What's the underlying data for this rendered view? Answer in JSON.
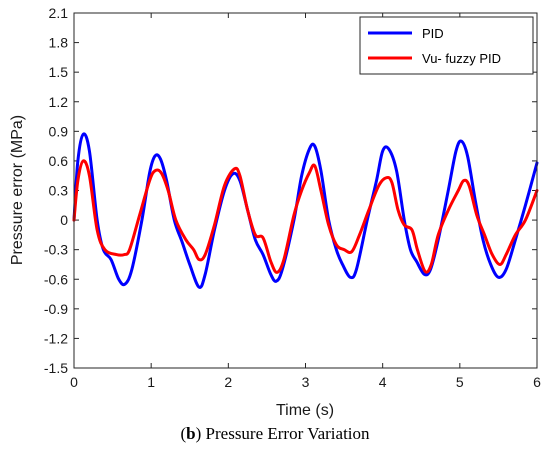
{
  "chart_data": {
    "type": "line",
    "xlabel": "Time (s)",
    "ylabel": "Pressure error (MPa)",
    "xlim": [
      0,
      6
    ],
    "ylim": [
      -1.5,
      2.1
    ],
    "xticks": [
      "0",
      "1",
      "2",
      "3",
      "4",
      "5",
      "6"
    ],
    "yticks": [
      "2.1",
      "1.8",
      "1.5",
      "1.2",
      "0.9",
      "0.6",
      "0.3",
      "0",
      "-0.3",
      "-0.6",
      "-0.9",
      "-1.2",
      "-1.5"
    ],
    "grid": false,
    "legend_position": "top-right",
    "series": [
      {
        "name": "PID",
        "color": "#0000ff",
        "points": [
          [
            0,
            0.0
          ],
          [
            0.05,
            0.6
          ],
          [
            0.12,
            0.87
          ],
          [
            0.2,
            0.7
          ],
          [
            0.3,
            0.0
          ],
          [
            0.38,
            -0.3
          ],
          [
            0.48,
            -0.4
          ],
          [
            0.58,
            -0.6
          ],
          [
            0.66,
            -0.65
          ],
          [
            0.75,
            -0.5
          ],
          [
            0.88,
            0.0
          ],
          [
            0.98,
            0.48
          ],
          [
            1.05,
            0.65
          ],
          [
            1.12,
            0.62
          ],
          [
            1.2,
            0.4
          ],
          [
            1.3,
            0.0
          ],
          [
            1.4,
            -0.22
          ],
          [
            1.5,
            -0.45
          ],
          [
            1.62,
            -0.68
          ],
          [
            1.7,
            -0.55
          ],
          [
            1.82,
            -0.1
          ],
          [
            1.95,
            0.3
          ],
          [
            2.06,
            0.47
          ],
          [
            2.15,
            0.4
          ],
          [
            2.25,
            0.1
          ],
          [
            2.35,
            -0.2
          ],
          [
            2.45,
            -0.35
          ],
          [
            2.55,
            -0.55
          ],
          [
            2.62,
            -0.62
          ],
          [
            2.7,
            -0.5
          ],
          [
            2.85,
            0.0
          ],
          [
            2.95,
            0.45
          ],
          [
            3.05,
            0.72
          ],
          [
            3.12,
            0.75
          ],
          [
            3.2,
            0.5
          ],
          [
            3.3,
            0.0
          ],
          [
            3.4,
            -0.3
          ],
          [
            3.48,
            -0.45
          ],
          [
            3.58,
            -0.58
          ],
          [
            3.66,
            -0.5
          ],
          [
            3.8,
            0.0
          ],
          [
            3.92,
            0.4
          ],
          [
            4.0,
            0.7
          ],
          [
            4.08,
            0.72
          ],
          [
            4.18,
            0.5
          ],
          [
            4.28,
            0.0
          ],
          [
            4.36,
            -0.3
          ],
          [
            4.44,
            -0.42
          ],
          [
            4.54,
            -0.55
          ],
          [
            4.62,
            -0.5
          ],
          [
            4.72,
            -0.2
          ],
          [
            4.85,
            0.3
          ],
          [
            4.95,
            0.7
          ],
          [
            5.02,
            0.8
          ],
          [
            5.1,
            0.65
          ],
          [
            5.2,
            0.2
          ],
          [
            5.3,
            -0.2
          ],
          [
            5.4,
            -0.45
          ],
          [
            5.5,
            -0.58
          ],
          [
            5.6,
            -0.5
          ],
          [
            5.72,
            -0.2
          ],
          [
            5.85,
            0.15
          ],
          [
            6.0,
            0.58
          ]
        ]
      },
      {
        "name": "Vu- fuzzy PID",
        "color": "#ff0000",
        "points": [
          [
            0,
            0.0
          ],
          [
            0.05,
            0.4
          ],
          [
            0.12,
            0.6
          ],
          [
            0.2,
            0.45
          ],
          [
            0.3,
            -0.1
          ],
          [
            0.4,
            -0.3
          ],
          [
            0.55,
            -0.35
          ],
          [
            0.65,
            -0.35
          ],
          [
            0.72,
            -0.3
          ],
          [
            0.85,
            0.05
          ],
          [
            0.98,
            0.4
          ],
          [
            1.05,
            0.5
          ],
          [
            1.13,
            0.48
          ],
          [
            1.22,
            0.3
          ],
          [
            1.32,
            0.0
          ],
          [
            1.45,
            -0.2
          ],
          [
            1.55,
            -0.3
          ],
          [
            1.62,
            -0.4
          ],
          [
            1.7,
            -0.35
          ],
          [
            1.82,
            -0.05
          ],
          [
            1.95,
            0.35
          ],
          [
            2.08,
            0.52
          ],
          [
            2.15,
            0.45
          ],
          [
            2.25,
            0.1
          ],
          [
            2.35,
            -0.15
          ],
          [
            2.45,
            -0.18
          ],
          [
            2.55,
            -0.42
          ],
          [
            2.63,
            -0.53
          ],
          [
            2.72,
            -0.4
          ],
          [
            2.85,
            0.05
          ],
          [
            2.95,
            0.3
          ],
          [
            3.05,
            0.48
          ],
          [
            3.12,
            0.55
          ],
          [
            3.2,
            0.3
          ],
          [
            3.3,
            -0.05
          ],
          [
            3.4,
            -0.25
          ],
          [
            3.5,
            -0.3
          ],
          [
            3.6,
            -0.32
          ],
          [
            3.7,
            -0.15
          ],
          [
            3.82,
            0.1
          ],
          [
            3.95,
            0.35
          ],
          [
            4.05,
            0.43
          ],
          [
            4.12,
            0.38
          ],
          [
            4.2,
            0.1
          ],
          [
            4.28,
            -0.05
          ],
          [
            4.38,
            -0.1
          ],
          [
            4.45,
            -0.3
          ],
          [
            4.55,
            -0.52
          ],
          [
            4.63,
            -0.45
          ],
          [
            4.72,
            -0.15
          ],
          [
            4.85,
            0.1
          ],
          [
            4.98,
            0.3
          ],
          [
            5.05,
            0.4
          ],
          [
            5.12,
            0.35
          ],
          [
            5.22,
            0.05
          ],
          [
            5.32,
            -0.15
          ],
          [
            5.42,
            -0.35
          ],
          [
            5.52,
            -0.45
          ],
          [
            5.6,
            -0.35
          ],
          [
            5.72,
            -0.15
          ],
          [
            5.85,
            0.0
          ],
          [
            6.0,
            0.3
          ]
        ]
      }
    ]
  },
  "caption": {
    "bold": "b",
    "pre": "(",
    "post": ") Pressure Error Variation"
  }
}
